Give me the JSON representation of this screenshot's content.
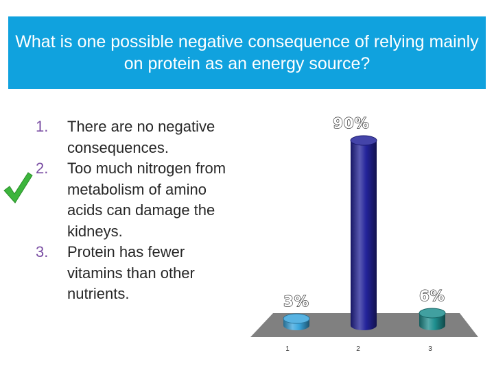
{
  "slide": {
    "title": "What is one possible negative consequence of relying mainly on protein as an energy source?"
  },
  "answers": [
    {
      "number": "1.",
      "text": "There are no negative consequences."
    },
    {
      "number": "2.",
      "text": "Too much nitrogen from metabolism of amino acids can damage the kidneys.",
      "correct": true
    },
    {
      "number": "3.",
      "text": "Protein has fewer vitamins than other nutrients."
    }
  ],
  "correct_mark": {
    "icon": "checkmark-icon",
    "color": "#3cb53c"
  },
  "chart_data": {
    "type": "bar",
    "style": "3d-cylinder",
    "categories": [
      "1",
      "2",
      "3"
    ],
    "values": [
      3,
      90,
      6
    ],
    "value_labels": [
      "3%",
      "90%",
      "6%"
    ],
    "colors": [
      "#3aa6dd",
      "#23239a",
      "#1f8f8f"
    ],
    "ylim": [
      0,
      90
    ],
    "title": "",
    "xlabel": "",
    "ylabel": ""
  }
}
